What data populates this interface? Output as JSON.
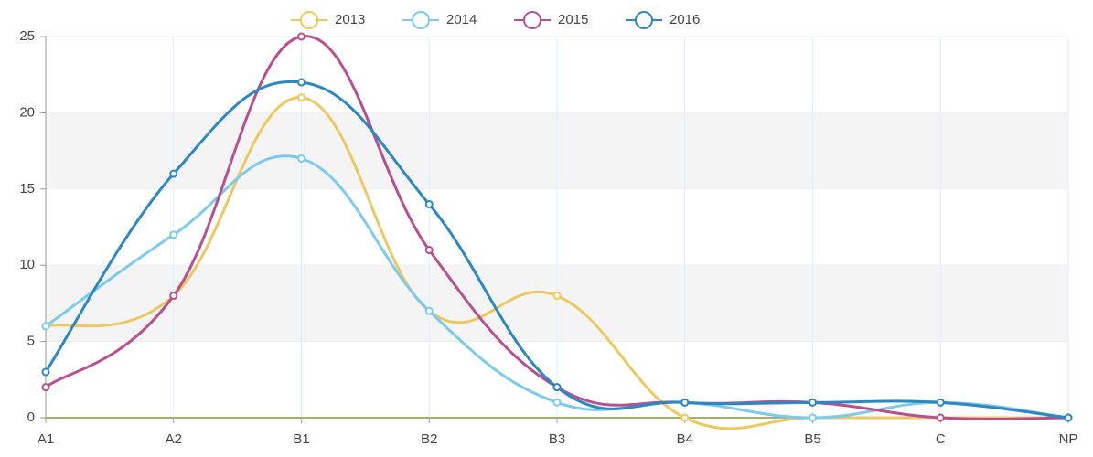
{
  "chart_data": {
    "type": "line",
    "categories": [
      "A1",
      "A2",
      "B1",
      "B2",
      "B3",
      "B4",
      "B5",
      "C",
      "NP"
    ],
    "series": [
      {
        "name": "2013",
        "color": "#ecc95e",
        "values": [
          6,
          8,
          21,
          7,
          8,
          0,
          0,
          0,
          0
        ]
      },
      {
        "name": "2014",
        "color": "#7ccbea",
        "values": [
          6,
          12,
          17,
          7,
          1,
          1,
          0,
          1,
          0
        ]
      },
      {
        "name": "2015",
        "color": "#b8508f",
        "values": [
          2,
          8,
          25,
          11,
          2,
          1,
          1,
          0,
          0
        ]
      },
      {
        "name": "2016",
        "color": "#2c88c2",
        "values": [
          3,
          16,
          22,
          14,
          2,
          1,
          1,
          1,
          0
        ]
      }
    ],
    "ylim": [
      0,
      25
    ],
    "yticks": [
      0,
      5,
      10,
      15,
      20,
      25
    ],
    "grid": true,
    "legend": "top"
  }
}
